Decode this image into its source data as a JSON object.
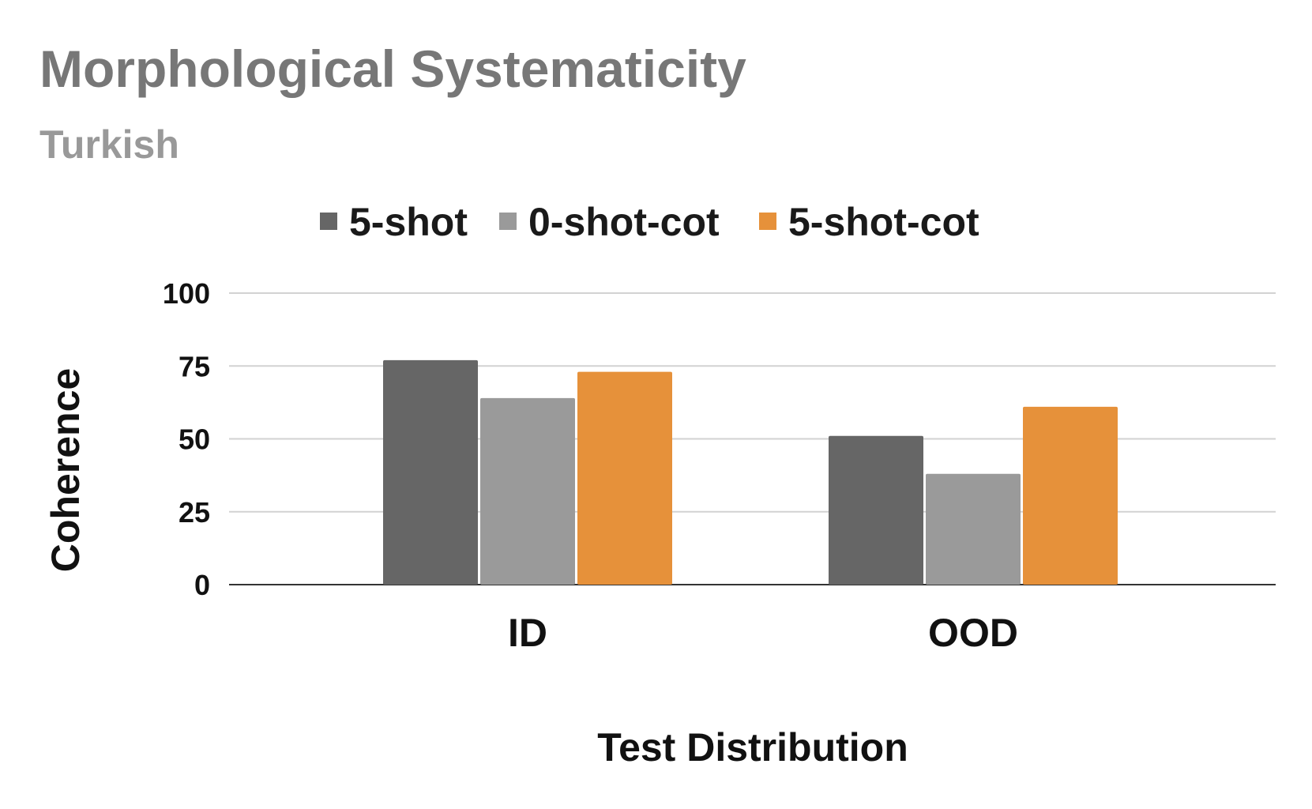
{
  "chart_data": {
    "type": "bar",
    "title": "Morphological Systematicity",
    "subtitle": "Turkish",
    "xlabel": "Test Distribution",
    "ylabel": "Coherence",
    "categories": [
      "ID",
      "OOD"
    ],
    "series": [
      {
        "name": "5-shot",
        "color": "#666666",
        "values": [
          77,
          51
        ]
      },
      {
        "name": "0-shot-cot",
        "color": "#9a9a9a",
        "values": [
          64,
          38
        ]
      },
      {
        "name": "5-shot-cot",
        "color": "#e6913a",
        "values": [
          73,
          61
        ]
      }
    ],
    "ylim": [
      0,
      100
    ],
    "yticks": [
      0,
      25,
      50,
      75,
      100
    ],
    "grid": true,
    "legend": "top-center"
  }
}
